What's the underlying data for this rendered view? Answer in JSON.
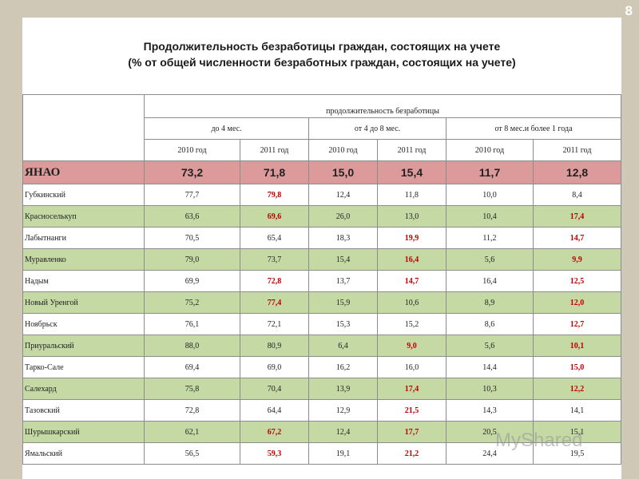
{
  "page_number": "8",
  "title_line1": "Продолжительность безработицы граждан, состоящих на учете",
  "title_line2": "(% от общей численности безработных граждан, состоящих на учете)",
  "header": {
    "group": "продолжительность безработицы",
    "periods": [
      "до 4 мес.",
      "от 4 до 8 мес.",
      "от 8 мес.и более 1 года"
    ],
    "years": [
      "2010 год",
      "2011 год",
      "2010 год",
      "2011 год",
      "2010 год",
      "2011 год"
    ]
  },
  "total": {
    "name": "ЯНАО",
    "values": [
      "73,2",
      "71,8",
      "15,0",
      "15,4",
      "11,7",
      "12,8"
    ]
  },
  "rows": [
    {
      "name": "Губкинский",
      "values": [
        "77,7",
        "79,8",
        "12,4",
        "11,8",
        "10,0",
        "8,4"
      ],
      "highlight": [
        1
      ]
    },
    {
      "name": "Красноселькуп",
      "values": [
        "63,6",
        "69,6",
        "26,0",
        "13,0",
        "10,4",
        "17,4"
      ],
      "highlight": [
        1,
        5
      ]
    },
    {
      "name": "Лабытнанги",
      "values": [
        "70,5",
        "65,4",
        "18,3",
        "19,9",
        "11,2",
        "14,7"
      ],
      "highlight": [
        3,
        5
      ]
    },
    {
      "name": "Муравленко",
      "values": [
        "79,0",
        "73,7",
        "15,4",
        "16,4",
        "5,6",
        "9,9"
      ],
      "highlight": [
        3,
        5
      ]
    },
    {
      "name": "Надым",
      "values": [
        "69,9",
        "72,8",
        "13,7",
        "14,7",
        "16,4",
        "12,5"
      ],
      "highlight": [
        1,
        3,
        5
      ]
    },
    {
      "name": "Новый Уренгой",
      "values": [
        "75,2",
        "77,4",
        "15,9",
        "10,6",
        "8,9",
        "12,0"
      ],
      "highlight": [
        1,
        5
      ]
    },
    {
      "name": "Ноябрьск",
      "values": [
        "76,1",
        "72,1",
        "15,3",
        "15,2",
        "8,6",
        "12,7"
      ],
      "highlight": [
        5
      ]
    },
    {
      "name": "Приуральский",
      "values": [
        "88,0",
        "80,9",
        "6,4",
        "9,0",
        "5,6",
        "10,1"
      ],
      "highlight": [
        3,
        5
      ]
    },
    {
      "name": "Тарко-Сале",
      "values": [
        "69,4",
        "69,0",
        "16,2",
        "16,0",
        "14,4",
        "15,0"
      ],
      "highlight": [
        5
      ]
    },
    {
      "name": "Салехард",
      "values": [
        "75,8",
        "70,4",
        "13,9",
        "17,4",
        "10,3",
        "12,2"
      ],
      "highlight": [
        3,
        5
      ]
    },
    {
      "name": "Тазовский",
      "values": [
        "72,8",
        "64,4",
        "12,9",
        "21,5",
        "14,3",
        "14,1"
      ],
      "highlight": [
        3
      ]
    },
    {
      "name": "Шурышкарский",
      "values": [
        "62,1",
        "67,2",
        "12,4",
        "17,7",
        "20,5",
        "15,1"
      ],
      "highlight": [
        1,
        3
      ]
    },
    {
      "name": "Ямальский",
      "values": [
        "56,5",
        "59,3",
        "19,1",
        "21,2",
        "24,4",
        "19,5"
      ],
      "highlight": [
        1,
        3
      ]
    }
  ],
  "watermark": "MyShared"
}
